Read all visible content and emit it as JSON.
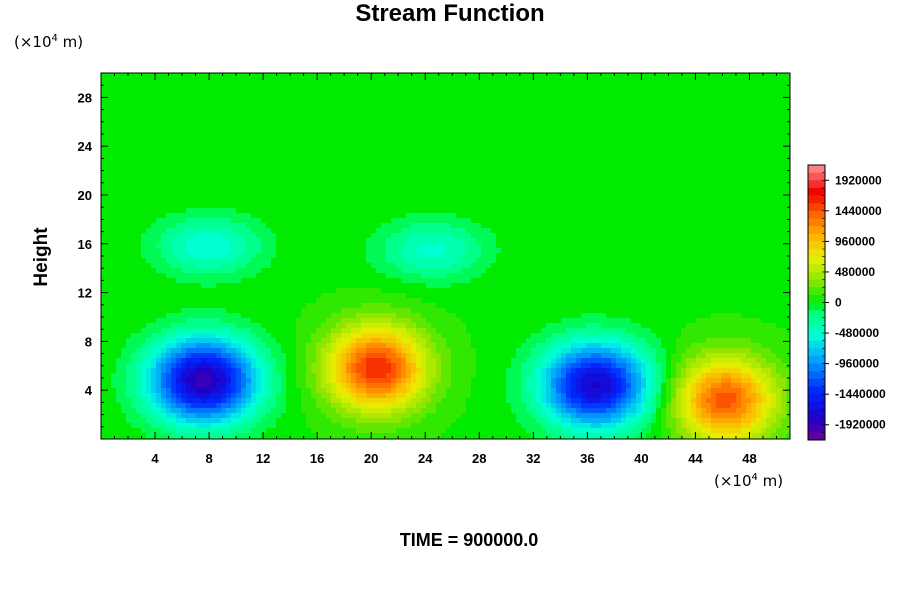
{
  "chart_data": {
    "type": "heatmap",
    "title": "Stream Function",
    "xlabel": "",
    "ylabel": "Height",
    "x_unit": "(×10⁴ m)",
    "y_unit": "(×10⁴ m)",
    "footer": "TIME = 900000.0",
    "xlim": [
      0,
      51
    ],
    "ylim": [
      0,
      30
    ],
    "x_ticks": [
      4,
      8,
      12,
      16,
      20,
      24,
      28,
      32,
      36,
      40,
      44,
      48
    ],
    "y_ticks": [
      4,
      8,
      12,
      16,
      20,
      24,
      28
    ],
    "colorbar": {
      "min": -2160000,
      "max": 2160000,
      "step": 120000,
      "tick_values": [
        1920000,
        1440000,
        960000,
        480000,
        0,
        -480000,
        -960000,
        -1440000,
        -1920000
      ],
      "tick_labels": [
        "1920000",
        "1440000",
        "960000",
        "480000",
        "0",
        "-480000",
        "-960000",
        "-1440000",
        "-1920000"
      ]
    },
    "features": [
      {
        "kind": "minimum",
        "x": 7.6,
        "y": 4.8,
        "value": -1950000
      },
      {
        "kind": "maximum",
        "x": 20.4,
        "y": 5.8,
        "value": 1560000
      },
      {
        "kind": "minimum",
        "x": 36.6,
        "y": 4.4,
        "value": -1800000
      },
      {
        "kind": "maximum",
        "x": 46.2,
        "y": 3.2,
        "value": 1400000
      },
      {
        "kind": "minimum",
        "x": 8.0,
        "y": 15.8,
        "value": -560000
      },
      {
        "kind": "minimum",
        "x": 24.5,
        "y": 15.5,
        "value": -500000
      }
    ]
  }
}
